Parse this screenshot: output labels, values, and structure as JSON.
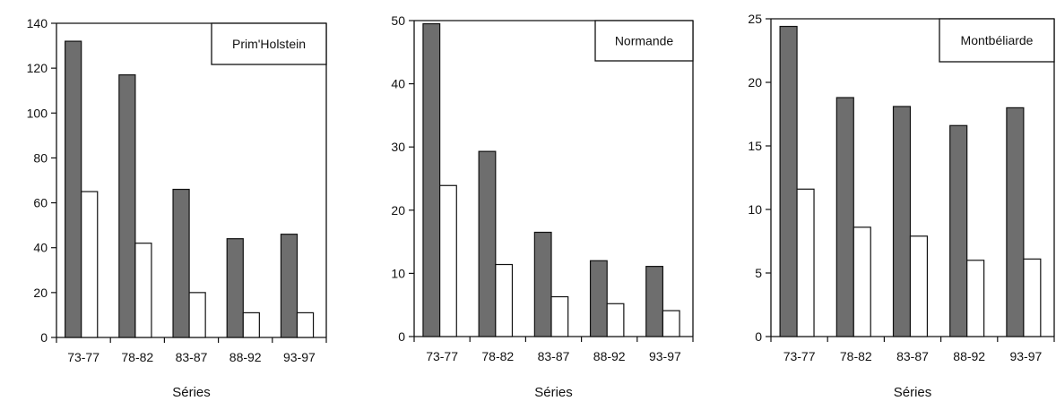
{
  "chart_data": [
    {
      "type": "bar",
      "title": "",
      "legend_label": "Prim'Holstein",
      "legend_position": "top-right",
      "xlabel": "Séries",
      "ylabel": "",
      "ylim": [
        0,
        140
      ],
      "yticks": [
        0,
        20,
        40,
        60,
        80,
        100,
        120,
        140
      ],
      "categories": [
        "73-77",
        "78-82",
        "83-87",
        "88-92",
        "93-97"
      ],
      "series": [
        {
          "values": [
            132,
            117,
            66,
            44,
            46
          ],
          "color": "#6e6e6e"
        },
        {
          "values": [
            65,
            42,
            20,
            11,
            11
          ],
          "color": "#ffffff"
        }
      ],
      "grid": false
    },
    {
      "type": "bar",
      "title": "",
      "legend_label": "Normande",
      "legend_position": "top-right",
      "xlabel": "Séries",
      "ylabel": "",
      "ylim": [
        0,
        50
      ],
      "yticks": [
        0,
        10,
        20,
        30,
        40,
        50
      ],
      "categories": [
        "73-77",
        "78-82",
        "83-87",
        "88-92",
        "93-97"
      ],
      "series": [
        {
          "values": [
            49.5,
            29.3,
            16.5,
            12,
            11.1
          ],
          "color": "#6e6e6e"
        },
        {
          "values": [
            23.9,
            11.4,
            6.3,
            5.2,
            4.1
          ],
          "color": "#ffffff"
        }
      ],
      "grid": false
    },
    {
      "type": "bar",
      "title": "",
      "legend_label": "Montbéliarde",
      "legend_position": "top-right",
      "xlabel": "Séries",
      "ylabel": "",
      "ylim": [
        0,
        25
      ],
      "yticks": [
        0,
        5,
        10,
        15,
        20,
        25
      ],
      "categories": [
        "73-77",
        "78-82",
        "83-87",
        "88-92",
        "93-97"
      ],
      "series": [
        {
          "values": [
            24.4,
            18.8,
            18.1,
            16.6,
            18
          ],
          "color": "#6e6e6e"
        },
        {
          "values": [
            11.6,
            8.6,
            7.9,
            6,
            6.1
          ],
          "color": "#ffffff"
        }
      ],
      "grid": false
    }
  ]
}
